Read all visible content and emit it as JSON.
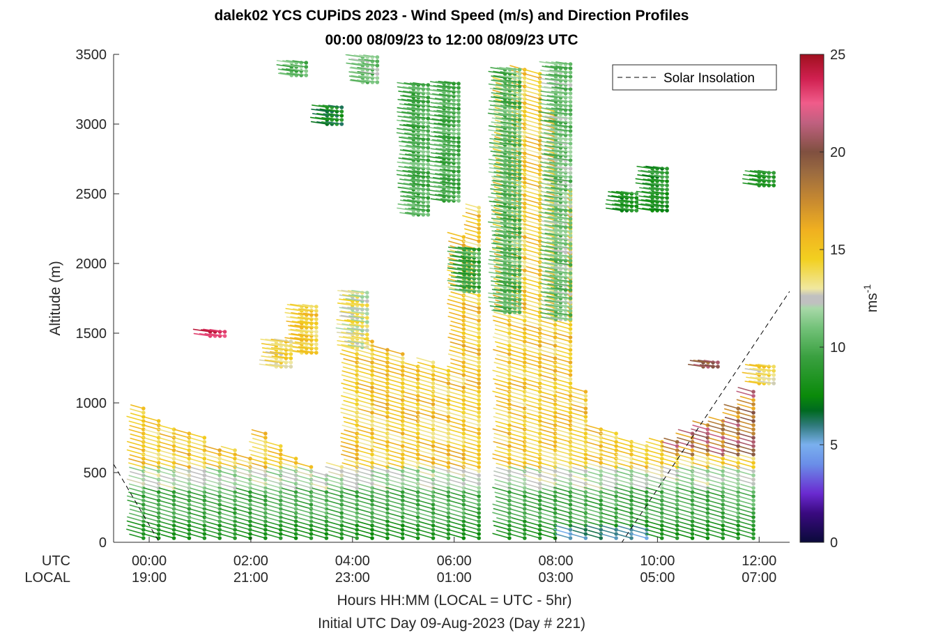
{
  "figure": {
    "title_line1": "dalek02 YCS CUPiDS 2023 - Wind Speed (m/s) and Direction Profiles",
    "title_line2": "00:00 08/09/23 to 12:00 08/09/23  UTC"
  },
  "chart_data": {
    "type": "wind-barb-profile",
    "ylabel": "Altitude (m)",
    "ylim": [
      0,
      3500
    ],
    "yticks": [
      0,
      500,
      1000,
      1500,
      2000,
      2500,
      3000,
      3500
    ],
    "xlim_hours": [
      -0.7,
      12.6
    ],
    "row_labels": [
      "UTC",
      "LOCAL"
    ],
    "x_ticks": [
      {
        "hour": 0,
        "utc": "00:00",
        "local": "19:00"
      },
      {
        "hour": 2,
        "utc": "02:00",
        "local": "21:00"
      },
      {
        "hour": 4,
        "utc": "04:00",
        "local": "23:00"
      },
      {
        "hour": 6,
        "utc": "06:00",
        "local": "01:00"
      },
      {
        "hour": 8,
        "utc": "08:00",
        "local": "03:00"
      },
      {
        "hour": 10,
        "utc": "10:00",
        "local": "05:00"
      },
      {
        "hour": 12,
        "utc": "12:00",
        "local": "07:00"
      }
    ],
    "xlabel": "Hours HH:MM  (LOCAL = UTC - 5hr)",
    "xlabel2": "Initial UTC Day 09-Aug-2023 (Day # 221)",
    "legend": {
      "label": "Solar Insolation",
      "position": "top-right"
    },
    "colorbar": {
      "label": "ms",
      "label_sup": "-1",
      "range": [
        0,
        25
      ],
      "ticks": [
        0,
        5,
        10,
        15,
        20,
        25
      ]
    },
    "solar_insolation": {
      "x": [
        -0.7,
        0.2,
        0.5,
        6.5,
        9.3,
        12.6
      ],
      "y": [
        560,
        0,
        0,
        0,
        0,
        1800
      ]
    },
    "profile_hours": [
      -0.25,
      0.05,
      0.35,
      0.65,
      0.95,
      1.25,
      1.55,
      1.85,
      2.15,
      2.45,
      2.75,
      3.05,
      3.35,
      3.65,
      3.95,
      4.25,
      4.55,
      4.85,
      5.15,
      5.45,
      5.75,
      6.05,
      6.35,
      6.65,
      6.95,
      7.25,
      7.55,
      7.85,
      8.15,
      8.45,
      8.75,
      9.05,
      9.35,
      9.65,
      9.95,
      10.25,
      10.55,
      10.85,
      11.15,
      11.45,
      11.75
    ],
    "profile_tops_m": [
      960,
      880,
      820,
      780,
      760,
      680,
      660,
      620,
      780,
      700,
      620,
      560,
      500,
      560,
      1380,
      1460,
      1380,
      1360,
      1260,
      1300,
      1240,
      2200,
      2400,
      0,
      3300,
      3400,
      3380,
      3100,
      2520,
      1080,
      820,
      780,
      720,
      700,
      720,
      740,
      780,
      860,
      880,
      960,
      1080
    ],
    "profile_bottom_m": 30,
    "barb_spacing_m": 30,
    "upper_clusters": [
      {
        "hour": 2.8,
        "alt_bottom": 3350,
        "alt_top": 3460,
        "speed": 10.5
      },
      {
        "hour": 3.5,
        "alt_bottom": 3000,
        "alt_top": 3140,
        "speed": 7.5
      },
      {
        "hour": 4.2,
        "alt_bottom": 3300,
        "alt_top": 3480,
        "speed": 11
      },
      {
        "hour": 5.2,
        "alt_bottom": 2350,
        "alt_top": 3300,
        "speed": 10
      },
      {
        "hour": 5.8,
        "alt_bottom": 2450,
        "alt_top": 3300,
        "speed": 10
      },
      {
        "hour": 7.0,
        "alt_bottom": 1650,
        "alt_top": 3400,
        "speed": 10.5
      },
      {
        "hour": 8.0,
        "alt_bottom": 1600,
        "alt_top": 3450,
        "speed": 11
      },
      {
        "hour": 9.3,
        "alt_bottom": 2380,
        "alt_top": 2500,
        "speed": 8.5
      },
      {
        "hour": 9.9,
        "alt_bottom": 2380,
        "alt_top": 2700,
        "speed": 8.5
      },
      {
        "hour": 12.0,
        "alt_bottom": 2560,
        "alt_top": 2660,
        "speed": 9
      },
      {
        "hour": 4.0,
        "alt_bottom": 1400,
        "alt_top": 1800,
        "speed": 13
      },
      {
        "hour": 3.0,
        "alt_bottom": 1360,
        "alt_top": 1700,
        "speed": 14.5
      },
      {
        "hour": 2.5,
        "alt_bottom": 1260,
        "alt_top": 1460,
        "speed": 14
      },
      {
        "hour": 1.2,
        "alt_bottom": 1480,
        "alt_top": 1520,
        "speed": 24
      },
      {
        "hour": 6.2,
        "alt_bottom": 1800,
        "alt_top": 2100,
        "speed": 9.5
      },
      {
        "hour": 10.9,
        "alt_bottom": 1260,
        "alt_top": 1300,
        "speed": 20
      },
      {
        "hour": 12.0,
        "alt_bottom": 1140,
        "alt_top": 1280,
        "speed": 14
      }
    ]
  }
}
